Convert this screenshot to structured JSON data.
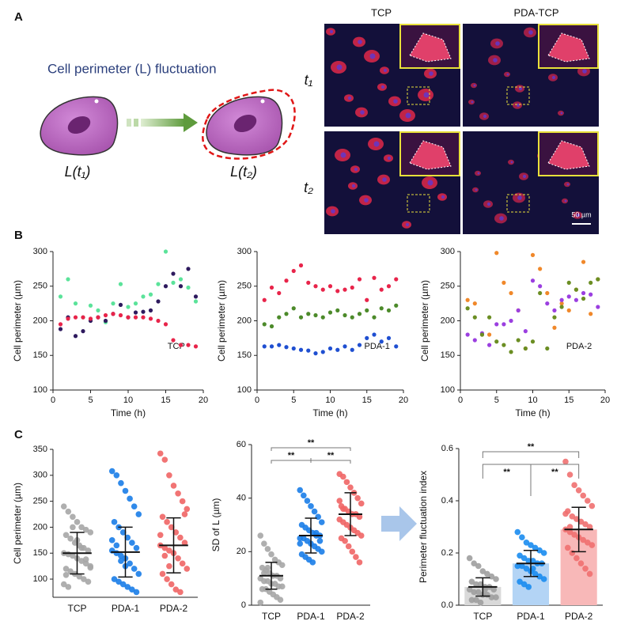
{
  "panel_labels": [
    "A",
    "B",
    "C"
  ],
  "panel_a": {
    "title": "Cell perimeter (L) fluctuation",
    "cell_labels": [
      "L(t₁)",
      "L(t₂)"
    ],
    "columns": [
      "TCP",
      "PDA-TCP"
    ],
    "rows": [
      "t₁",
      "t₂"
    ],
    "scale_bar": "50 µm"
  },
  "chart_data": [
    {
      "type": "scatter",
      "label": "TCP",
      "xlabel": "Time (h)",
      "ylabel": "Cell perimeter (µm)",
      "x": [
        1,
        2,
        3,
        4,
        5,
        6,
        7,
        8,
        9,
        10,
        11,
        12,
        13,
        14,
        15,
        16,
        17,
        18,
        19
      ],
      "series": [
        {
          "color": "#5be39a",
          "values": [
            235,
            260,
            225,
            205,
            222,
            215,
            198,
            225,
            253,
            220,
            225,
            235,
            238,
            253,
            300,
            255,
            260,
            248,
            228
          ]
        },
        {
          "color": "#2e1a5e",
          "values": [
            188,
            205,
            178,
            185,
            200,
            205,
            200,
            210,
            223,
            205,
            212,
            213,
            215,
            228,
            250,
            268,
            250,
            275,
            235
          ]
        },
        {
          "color": "#e8244a",
          "values": [
            195,
            203,
            205,
            205,
            203,
            205,
            208,
            210,
            208,
            205,
            205,
            205,
            203,
            200,
            195,
            172,
            165,
            165,
            163
          ]
        }
      ],
      "xlim": [
        0,
        20
      ],
      "xticks": [
        0,
        5,
        10,
        15,
        20
      ],
      "ylim": [
        100,
        300
      ],
      "yticks": [
        100,
        150,
        200,
        250,
        300
      ]
    },
    {
      "type": "scatter",
      "label": "PDA-1",
      "xlabel": "Time (h)",
      "ylabel": "Cell perimeter (µm)",
      "x": [
        1,
        2,
        3,
        4,
        5,
        6,
        7,
        8,
        9,
        10,
        11,
        12,
        13,
        14,
        15,
        16,
        17,
        18,
        19
      ],
      "series": [
        {
          "color": "#e8244a",
          "values": [
            230,
            248,
            240,
            258,
            272,
            280,
            255,
            250,
            245,
            250,
            243,
            245,
            248,
            260,
            230,
            262,
            245,
            250,
            260
          ]
        },
        {
          "color": "#4c8a2a",
          "values": [
            195,
            192,
            205,
            210,
            218,
            205,
            210,
            208,
            205,
            212,
            215,
            208,
            205,
            210,
            215,
            205,
            218,
            215,
            222
          ]
        },
        {
          "color": "#1f4fd1",
          "values": [
            163,
            163,
            165,
            162,
            160,
            158,
            157,
            153,
            155,
            160,
            158,
            163,
            158,
            165,
            175,
            180,
            170,
            175,
            163
          ]
        }
      ],
      "xlim": [
        0,
        20
      ],
      "xticks": [
        0,
        5,
        10,
        15,
        20
      ],
      "ylim": [
        100,
        300
      ],
      "yticks": [
        100,
        150,
        200,
        250,
        300
      ]
    },
    {
      "type": "scatter",
      "label": "PDA-2",
      "xlabel": "Time (h)",
      "ylabel": "Cell perimeter (µm)",
      "x": [
        1,
        2,
        3,
        4,
        5,
        6,
        7,
        8,
        9,
        10,
        11,
        12,
        13,
        14,
        15,
        16,
        17,
        18,
        19
      ],
      "series": [
        {
          "color": "#f0882a",
          "values": [
            230,
            225,
            180,
            180,
            298,
            255,
            240,
            215,
            160,
            295,
            275,
            240,
            190,
            225,
            215,
            245,
            285,
            210,
            260
          ]
        },
        {
          "color": "#9b3fe0",
          "values": [
            180,
            172,
            182,
            165,
            195,
            195,
            200,
            215,
            185,
            258,
            250,
            225,
            215,
            230,
            235,
            230,
            240,
            238,
            220
          ]
        },
        {
          "color": "#6b8e23",
          "values": [
            218,
            205,
            180,
            205,
            170,
            165,
            155,
            172,
            160,
            170,
            240,
            160,
            205,
            220,
            255,
            245,
            232,
            255,
            260
          ]
        }
      ],
      "xlim": [
        0,
        20
      ],
      "xticks": [
        0,
        5,
        10,
        15,
        20
      ],
      "ylim": [
        100,
        300
      ],
      "yticks": [
        100,
        150,
        200,
        250,
        300
      ]
    },
    {
      "type": "dot",
      "ylabel": "Cell perimeter (µm)",
      "categories": [
        "TCP",
        "PDA-1",
        "PDA-2"
      ],
      "points": [
        [
          240,
          230,
          220,
          210,
          200,
          195,
          190,
          185,
          178,
          170,
          165,
          160,
          155,
          150,
          148,
          145,
          140,
          135,
          130,
          125,
          120,
          115,
          110,
          105,
          100,
          95,
          90,
          85,
          200,
          175,
          160,
          138,
          122,
          108
        ],
        [
          308,
          300,
          285,
          270,
          255,
          240,
          225,
          210,
          200,
          190,
          180,
          170,
          160,
          155,
          150,
          145,
          140,
          130,
          120,
          110,
          100,
          95,
          90,
          85,
          80,
          75,
          175,
          165,
          135,
          125
        ],
        [
          342,
          330,
          300,
          280,
          265,
          250,
          235,
          220,
          210,
          200,
          190,
          180,
          170,
          165,
          160,
          155,
          150,
          140,
          130,
          120,
          110,
          100,
          90,
          80,
          75,
          225,
          185,
          145,
          125
        ]
      ],
      "means": [
        150,
        152,
        165
      ],
      "sds": [
        40,
        48,
        53
      ],
      "colors": [
        "#a6a6a6",
        "#1a7de8",
        "#f06565"
      ],
      "ylim": [
        65,
        350
      ],
      "yticks": [
        100,
        150,
        200,
        250,
        300,
        350
      ]
    },
    {
      "type": "dot",
      "ylabel": "SD of L (µm)",
      "categories": [
        "TCP",
        "PDA-1",
        "PDA-2"
      ],
      "points": [
        [
          26,
          23,
          21,
          19,
          17,
          16,
          15,
          14,
          13,
          12,
          11,
          11,
          10,
          10,
          9,
          9,
          8,
          8,
          7,
          7,
          6,
          6,
          5,
          4,
          3,
          2,
          1,
          12,
          14
        ],
        [
          43,
          41,
          39,
          37,
          35,
          33,
          31,
          30,
          29,
          28,
          27,
          26,
          26,
          25,
          25,
          24,
          23,
          22,
          21,
          20,
          19,
          18,
          17,
          16,
          27,
          24,
          23
        ],
        [
          49,
          48,
          46,
          44,
          42,
          40,
          38,
          37,
          36,
          35,
          34,
          34,
          33,
          32,
          31,
          30,
          29,
          28,
          27,
          26,
          25,
          24,
          22,
          20,
          18,
          16,
          39,
          36
        ]
      ],
      "means": [
        11,
        26,
        34
      ],
      "sds": [
        5,
        6.5,
        8
      ],
      "colors": [
        "#a6a6a6",
        "#1a7de8",
        "#f06565"
      ],
      "ylim": [
        0,
        60
      ],
      "yticks": [
        0,
        20,
        40,
        60
      ],
      "significance": [
        "**",
        "**",
        "**"
      ]
    },
    {
      "type": "bar",
      "ylabel": "Perimeter fluctuation index",
      "categories": [
        "TCP",
        "PDA-1",
        "PDA-2"
      ],
      "values": [
        0.07,
        0.16,
        0.29
      ],
      "sds": [
        0.035,
        0.05,
        0.085
      ],
      "points": [
        [
          0.18,
          0.16,
          0.15,
          0.13,
          0.12,
          0.11,
          0.1,
          0.09,
          0.08,
          0.08,
          0.07,
          0.07,
          0.06,
          0.06,
          0.05,
          0.05,
          0.04,
          0.04,
          0.03,
          0.03,
          0.02,
          0.02,
          0.01,
          0.06
        ],
        [
          0.28,
          0.26,
          0.24,
          0.23,
          0.22,
          0.21,
          0.2,
          0.19,
          0.18,
          0.17,
          0.17,
          0.16,
          0.16,
          0.15,
          0.15,
          0.14,
          0.13,
          0.12,
          0.11,
          0.1,
          0.09,
          0.08,
          0.07,
          0.14
        ],
        [
          0.55,
          0.5,
          0.46,
          0.44,
          0.42,
          0.4,
          0.38,
          0.36,
          0.34,
          0.33,
          0.32,
          0.31,
          0.3,
          0.29,
          0.28,
          0.27,
          0.26,
          0.25,
          0.24,
          0.23,
          0.22,
          0.2,
          0.18,
          0.16,
          0.14,
          0.12,
          0.35,
          0.3
        ]
      ],
      "bar_colors": [
        "#d9d9d9",
        "#b3d4f5",
        "#f8b8b8"
      ],
      "point_colors": [
        "#9e9e9e",
        "#1a8cf0",
        "#f07070"
      ],
      "ylim": [
        0,
        0.6
      ],
      "yticks": [
        {
          "value": 0,
          "label": "0.0"
        },
        0.2,
        0.4,
        0.6
      ],
      "significance": [
        "**",
        "**",
        "**"
      ]
    }
  ]
}
